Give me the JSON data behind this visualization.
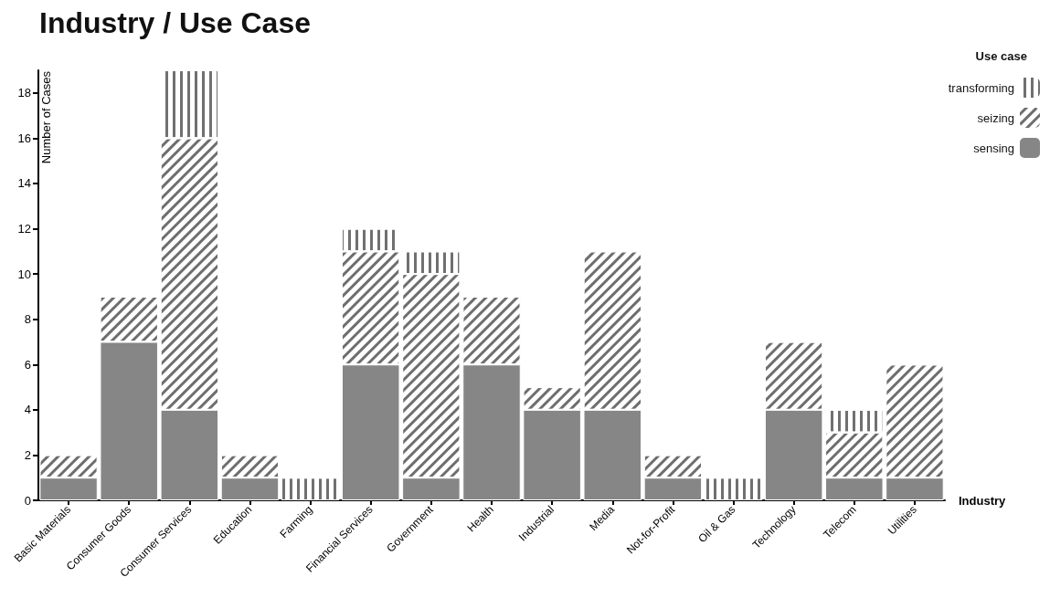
{
  "chart_data": {
    "type": "bar",
    "title": "Industry / Use Case",
    "xlabel": "Industry",
    "ylabel": "Number of Cases",
    "legend_title": "Use case",
    "categories": [
      "Basic Materials",
      "Consumer Goods",
      "Consumer Services",
      "Education",
      "Farming",
      "Financial Services",
      "Government",
      "Health",
      "Industrial",
      "Media",
      "Not-for-Profit",
      "Oil & Gas",
      "Technology",
      "Telecom",
      "Utilities"
    ],
    "series": [
      {
        "name": "sensing",
        "color": "#868686",
        "values": [
          1,
          7,
          4,
          1,
          0,
          6,
          1,
          6,
          4,
          4,
          1,
          0,
          4,
          1,
          1
        ]
      },
      {
        "name": "seizing",
        "color": "#6e6e6e",
        "values": [
          1,
          2,
          12,
          1,
          0,
          5,
          9,
          3,
          1,
          7,
          1,
          0,
          3,
          2,
          5
        ]
      },
      {
        "name": "transforming",
        "color": "#707070",
        "values": [
          0,
          0,
          3,
          0,
          1,
          1,
          1,
          0,
          0,
          0,
          0,
          1,
          0,
          1,
          0
        ]
      }
    ],
    "stacked": true,
    "ylim": [
      0,
      19
    ],
    "yticks": [
      0,
      2,
      4,
      6,
      8,
      10,
      12,
      14,
      16,
      18
    ],
    "grid": false,
    "legend": "top right"
  }
}
